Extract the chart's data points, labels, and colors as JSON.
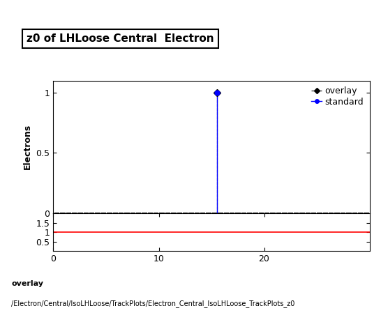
{
  "title": "z0 of LHLoose Central  Electron",
  "ylabel_main": "Electrons",
  "xlim": [
    0,
    30
  ],
  "ylim_main": [
    0,
    1.1
  ],
  "ylim_ratio": [
    0,
    2.0
  ],
  "ratio_yticks": [
    0.5,
    1.0,
    1.5
  ],
  "ratio_xticks": [
    0,
    10,
    20
  ],
  "spike_x": 15.5,
  "spike_y_overlay": 1.0,
  "spike_y_standard": 1.0,
  "overlay_color": "#000000",
  "standard_color": "#0000ff",
  "ratio_line_color": "#ff0000",
  "ratio_line_y": 1.0,
  "legend_overlay": "overlay",
  "legend_standard": "standard",
  "footer_line1": "overlay",
  "footer_line2": "/Electron/Central/IsoLHLoose/TrackPlots/Electron_Central_IsoLHLoose_TrackPlots_z0",
  "background_color": "#ffffff",
  "title_fontsize": 11,
  "axis_fontsize": 9,
  "tick_fontsize": 9,
  "footer_fontsize1": 8,
  "footer_fontsize2": 7
}
